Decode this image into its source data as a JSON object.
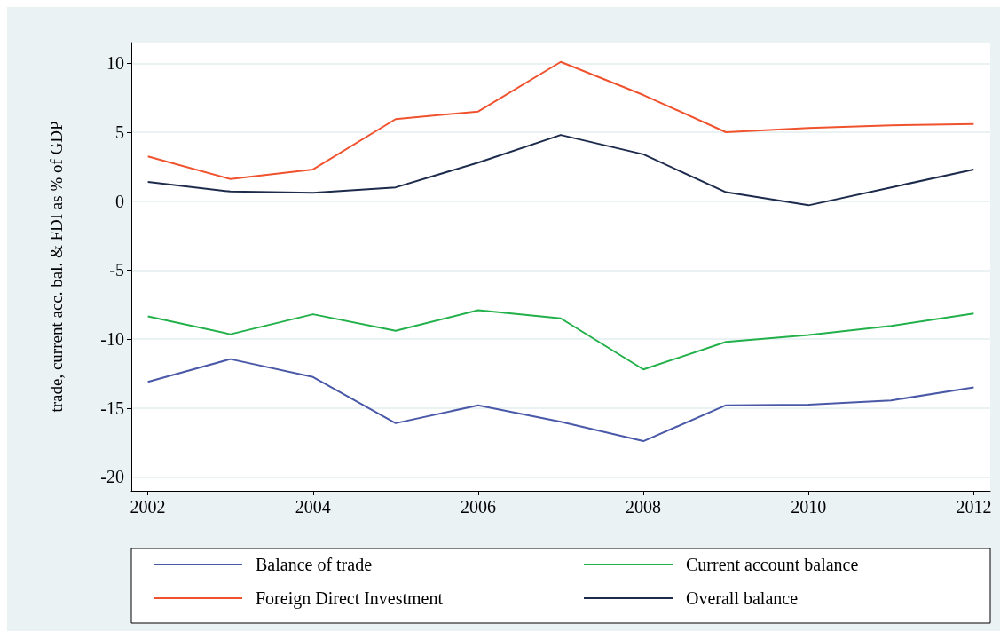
{
  "chart_data": {
    "type": "line",
    "ylabel": "trade, current acc. bal. & FDI as % of GDP",
    "x": [
      2002,
      2003,
      2004,
      2005,
      2006,
      2007,
      2008,
      2009,
      2010,
      2011,
      2012
    ],
    "series": [
      {
        "name": "Balance of trade",
        "color": "#4a58a8",
        "values": [
          -13.1,
          -11.45,
          -12.75,
          -16.1,
          -14.8,
          -16.0,
          -17.4,
          -14.8,
          -14.75,
          -14.45,
          -13.5
        ]
      },
      {
        "name": "Current account balance",
        "color": "#22b04a",
        "values": [
          -8.35,
          -9.65,
          -8.2,
          -9.4,
          -7.9,
          -8.5,
          -12.2,
          -10.2,
          -9.7,
          -9.05,
          -8.15
        ]
      },
      {
        "name": "Foreign Direct Investment",
        "color": "#f0522e",
        "values": [
          3.25,
          1.6,
          2.3,
          5.95,
          6.5,
          10.1,
          7.7,
          5.0,
          5.3,
          5.5,
          5.6
        ]
      },
      {
        "name": "Overall balance",
        "color": "#1c2a4c",
        "values": [
          1.4,
          0.7,
          0.6,
          1.0,
          2.8,
          4.8,
          3.4,
          0.65,
          -0.3,
          1.0,
          2.3
        ]
      }
    ],
    "xlim": [
      2001.8,
      2012.2
    ],
    "xticks": [
      2002,
      2004,
      2006,
      2008,
      2010,
      2012
    ],
    "ylim": [
      -21,
      11.5
    ],
    "yticks": [
      -20,
      -15,
      -10,
      -5,
      0,
      5,
      10
    ],
    "grid": "y",
    "legend": "bottom",
    "marker": "none",
    "line_style": "solid"
  }
}
